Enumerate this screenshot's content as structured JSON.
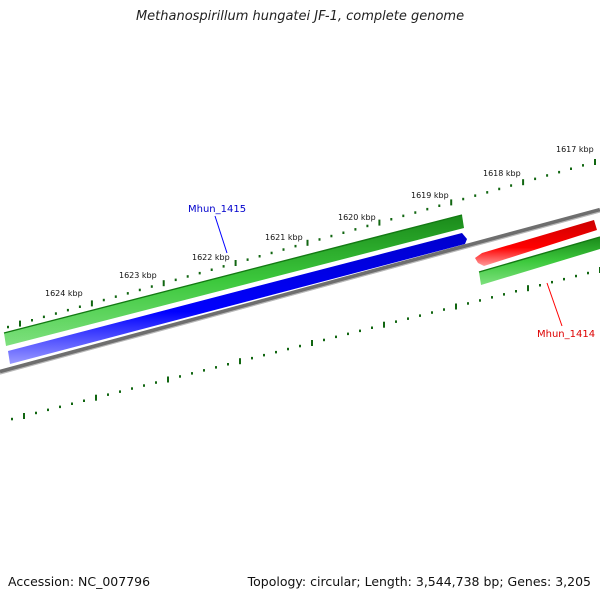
{
  "title": "Methanospirillum hungatei JF-1, complete genome",
  "footer": {
    "accession": "Accession: NC_007796",
    "summary": "Topology: circular; Length: 3,544,738 bp; Genes: 3,205"
  },
  "scale": {
    "labels": [
      "1617 kbp",
      "1618 kbp",
      "1619 kbp",
      "1620 kbp",
      "1621 kbp",
      "1622 kbp",
      "1623 kbp",
      "1624 kbp"
    ]
  },
  "genes": [
    {
      "name": "Mhun_1415",
      "color": "#0000ff",
      "strand": "plus"
    },
    {
      "name": "Mhun_1414",
      "color": "#ff0000",
      "strand": "minus"
    }
  ],
  "colors": {
    "cds": "#22aa22",
    "backbone": "#888888",
    "ticks": "#116611"
  }
}
